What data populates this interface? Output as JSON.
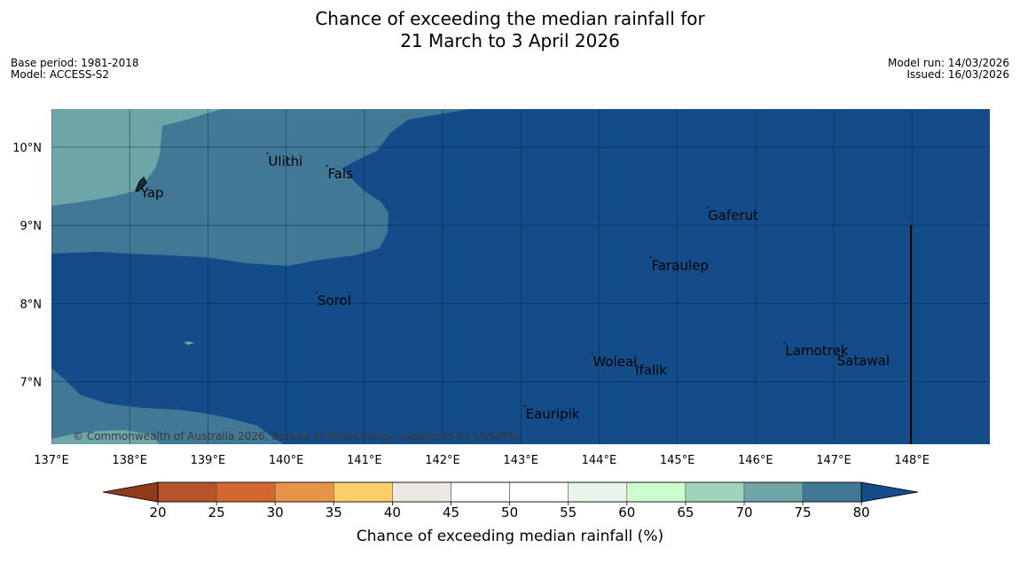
{
  "title": {
    "line1": "Chance of exceeding the median rainfall for",
    "line2": "21 March to 3 April 2026"
  },
  "meta_left": {
    "base_period": "Base period: 1981-2018",
    "model": "Model: ACCESS-S2"
  },
  "meta_right": {
    "model_run": "Model run: 14/03/2026",
    "issued": "Issued: 16/03/2026"
  },
  "map": {
    "lon_range": [
      137,
      149
    ],
    "lat_range": [
      6.2,
      10.5
    ],
    "lon_ticks": [
      "137°E",
      "138°E",
      "139°E",
      "140°E",
      "141°E",
      "142°E",
      "143°E",
      "144°E",
      "145°E",
      "146°E",
      "147°E",
      "148°E"
    ],
    "lat_ticks": [
      "10°N",
      "9°N",
      "8°N",
      "7°N"
    ],
    "places": [
      {
        "name": "Ulithi",
        "lon": 139.76,
        "lat": 9.92
      },
      {
        "name": "Fais",
        "lon": 140.52,
        "lat": 9.76
      },
      {
        "name": "Yap",
        "lon": 138.13,
        "lat": 9.52
      },
      {
        "name": "Gaferut",
        "lon": 145.38,
        "lat": 9.23
      },
      {
        "name": "Faraulep",
        "lon": 144.66,
        "lat": 8.59
      },
      {
        "name": "Sorol",
        "lon": 140.39,
        "lat": 8.14
      },
      {
        "name": "Woleai",
        "lon": 143.91,
        "lat": 7.36
      },
      {
        "name": "Ifalik",
        "lon": 144.45,
        "lat": 7.25
      },
      {
        "name": "Lamotrek",
        "lon": 146.37,
        "lat": 7.5
      },
      {
        "name": "Satawal",
        "lon": 147.03,
        "lat": 7.37
      },
      {
        "name": "Eauripik",
        "lon": 143.05,
        "lat": 6.69
      }
    ],
    "credit": "© Commonwealth of Australia 2026, Bureau of Meteorology, supported by COSPPac"
  },
  "colorbar": {
    "ticks": [
      "20",
      "25",
      "30",
      "35",
      "40",
      "45",
      "50",
      "55",
      "60",
      "65",
      "70",
      "75",
      "80"
    ],
    "colors": [
      "#8f3b1b",
      "#b5532a",
      "#d2682f",
      "#e59448",
      "#fdcf6a",
      "#ece9e3",
      "#ffffff",
      "#ffffff",
      "#e9f5ea",
      "#ccffcc",
      "#9ed3bc",
      "#6ea5a6",
      "#417896",
      "#134c88"
    ],
    "title": "Chance of exceeding median rainfall (%)"
  },
  "colors": {
    "band_70_75": "#6ea5a6",
    "band_75_80": "#417896",
    "band_above_80": "#134c88"
  }
}
